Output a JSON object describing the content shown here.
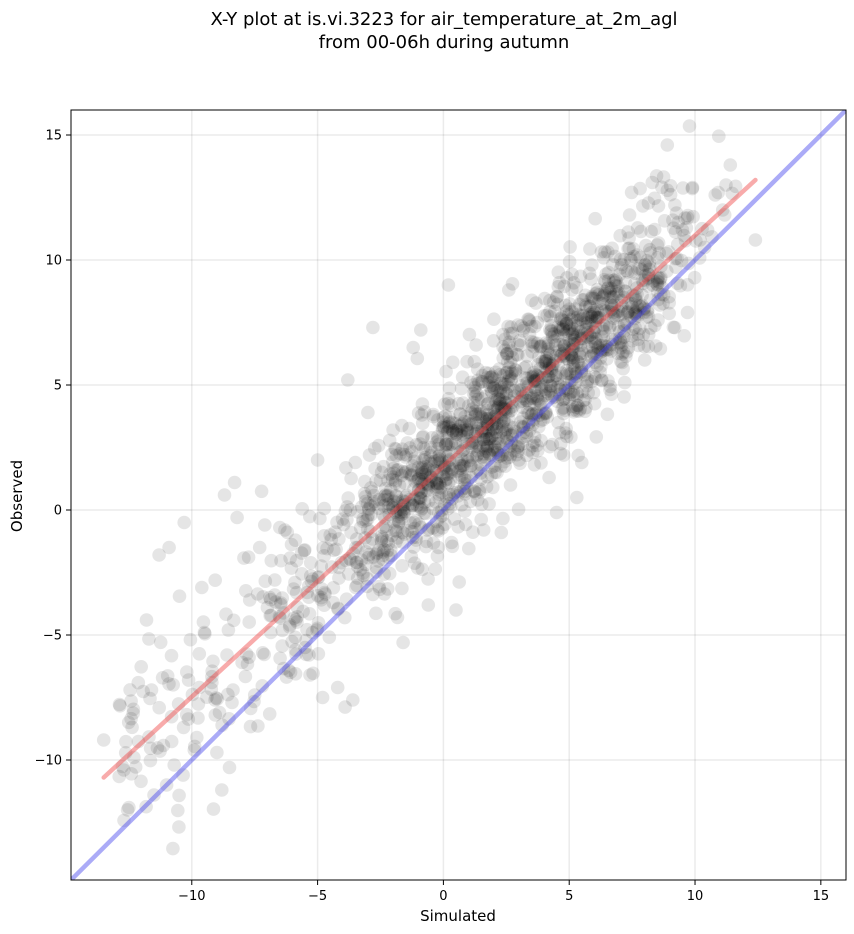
{
  "chart_data": {
    "type": "scatter",
    "title": "X-Y plot at is.vi.3223 for air_temperature_at_2m_agl",
    "subtitle": "from 00-06h during autumn",
    "xlabel": "Simulated",
    "ylabel": "Observed",
    "xlim": [
      -14.8,
      16.0
    ],
    "ylim": [
      -14.8,
      16.0
    ],
    "xticks": [
      -10,
      -5,
      0,
      5,
      10,
      15
    ],
    "yticks": [
      -10,
      -5,
      0,
      5,
      10,
      15
    ],
    "xtick_labels": [
      "−10",
      "−5",
      "0",
      "5",
      "10",
      "15"
    ],
    "ytick_labels": [
      "−10",
      "−5",
      "0",
      "5",
      "10",
      "15"
    ],
    "grid": true,
    "point_color": "#000000",
    "point_alpha": 0.1,
    "fit_line": {
      "color": "#ef4444",
      "alpha": 0.45,
      "x": [
        -13.5,
        12.4
      ],
      "y": [
        -10.7,
        13.2
      ]
    },
    "identity_line": {
      "color": "#4545ee",
      "alpha": 0.45,
      "x": [
        -14.8,
        16.0
      ],
      "y": [
        -14.8,
        16.0
      ]
    },
    "notable_points": {
      "x": [
        -13.5,
        -12.7,
        -12.5,
        -12.3,
        -11.8,
        -11.6,
        -11.5,
        -11.3,
        -11.0,
        -10.9,
        -10.7,
        -10.3,
        -9.9,
        -9.8,
        -9.7,
        -9.6,
        -9.5,
        -9.2,
        -9.0,
        -8.9,
        -8.7,
        -8.6,
        -8.5,
        -8.4,
        -8.3,
        -8.2,
        -8.0,
        -7.7,
        -7.5,
        -7.3,
        -7.1,
        -6.9,
        -6.7,
        -6.5,
        -6.3,
        -6.1,
        -5.9,
        -5.5,
        -5.3,
        -5.0,
        -4.8,
        -4.5,
        -4.2,
        -3.8,
        -3.6,
        -3.5,
        -3.0,
        -2.8,
        -2.5,
        -2.3,
        -2.0,
        -1.6,
        -1.2,
        -0.9,
        -0.6,
        -0.2,
        0.2,
        0.5,
        0.8,
        1.1,
        1.3,
        1.6,
        1.9,
        2.1,
        2.3,
        2.6,
        3.0,
        3.3,
        3.6,
        3.9,
        4.2,
        4.5,
        4.8,
        5.0,
        5.3,
        5.5,
        5.9,
        6.2,
        6.5,
        6.8,
        7.1,
        7.4,
        7.7,
        8.0,
        8.3,
        8.5,
        8.7,
        8.9,
        9.2,
        9.5,
        9.7,
        9.9,
        10.2,
        10.5,
        10.8,
        11.1,
        11.4,
        12.4
      ],
      "y": [
        -9.2,
        -10.4,
        -11.9,
        -9.9,
        -4.4,
        -7.2,
        -11.4,
        -1.8,
        -11.0,
        -1.5,
        -10.2,
        -0.5,
        -9.6,
        -9.1,
        -7.1,
        -3.1,
        -4.9,
        -6.9,
        -9.7,
        -8.1,
        0.6,
        -5.8,
        -10.3,
        -7.7,
        1.1,
        -0.3,
        -6.1,
        -3.6,
        -7.4,
        -1.5,
        -0.6,
        -3.5,
        -2.8,
        -0.7,
        -0.8,
        -4.6,
        -2.9,
        -5.5,
        -6.6,
        2.0,
        -7.5,
        -1.0,
        -7.1,
        5.2,
        -7.6,
        1.9,
        3.9,
        7.3,
        1.2,
        0.6,
        3.2,
        -5.3,
        6.5,
        7.2,
        -3.8,
        -1.5,
        9.0,
        -4.0,
        2.7,
        1.3,
        6.6,
        -0.8,
        5.3,
        3.8,
        -0.9,
        8.8,
        2.0,
        3.1,
        6.7,
        4.8,
        1.3,
        -0.1,
        6.4,
        7.2,
        0.5,
        1.9,
        9.8,
        7.7,
        6.4,
        9.1,
        5.9,
        11.8,
        10.2,
        6.0,
        13.1,
        10.6,
        8.9,
        14.6,
        12.2,
        11.2,
        7.9,
        12.9,
        10.8,
        11.2,
        12.6,
        12.0,
        13.8,
        10.8
      ]
    }
  }
}
